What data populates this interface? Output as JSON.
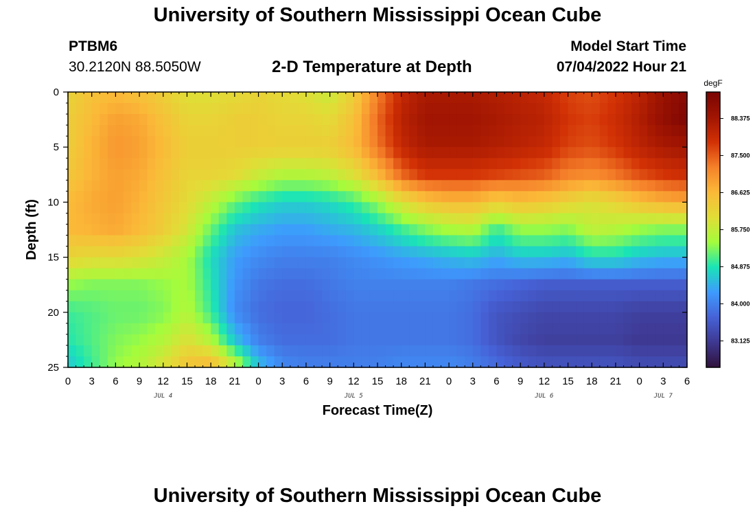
{
  "header": {
    "title": "University of Southern Mississippi Ocean Cube",
    "station_id": "PTBM6",
    "coordinates": "30.2120N  88.5050W",
    "subtitle": "2-D Temperature at Depth",
    "model_start_label": "Model Start Time",
    "model_start_value": "07/04/2022 Hour 21"
  },
  "footer": {
    "title": "University of Southern Mississippi Ocean Cube"
  },
  "chart_data": {
    "type": "heatmap",
    "title": "2-D Temperature at Depth",
    "xlabel": "Forecast Time(Z)",
    "ylabel": "Depth (ft)",
    "x_ticks": [
      "0",
      "3",
      "6",
      "9",
      "12",
      "15",
      "18",
      "21",
      "0",
      "3",
      "6",
      "9",
      "12",
      "15",
      "18",
      "21",
      "0",
      "3",
      "6",
      "9",
      "12",
      "15",
      "18",
      "21",
      "0",
      "3",
      "6"
    ],
    "day_labels": [
      {
        "label": "JUL 4",
        "tick_index": 4
      },
      {
        "label": "JUL 5",
        "tick_index": 12
      },
      {
        "label": "JUL 6",
        "tick_index": 20
      },
      {
        "label": "JUL 7",
        "tick_index": 25
      }
    ],
    "y_ticks": [
      0,
      5,
      10,
      15,
      20,
      25
    ],
    "ylim": [
      0,
      25
    ],
    "y_inverted": true,
    "x_hours_range": [
      0,
      78
    ],
    "colorbar": {
      "unit": "degF",
      "ticks": [
        88.375,
        87.5,
        86.625,
        85.75,
        84.875,
        84.0,
        83.125
      ],
      "tick_labels": [
        "88.375",
        "87.500",
        "86.625",
        "85.750",
        "84.875",
        "84.000",
        "83.125"
      ],
      "range": [
        82.5,
        89.0
      ],
      "colors": [
        "#30123b",
        "#3e3891",
        "#4662d7",
        "#3e9bfe",
        "#1ae4b6",
        "#a4fc3c",
        "#e1dd37",
        "#fbb938",
        "#f5812a",
        "#d23105",
        "#a01502",
        "#7a0403"
      ]
    },
    "x_hours": [
      0,
      3,
      6,
      9,
      12,
      15,
      18,
      21,
      24,
      27,
      30,
      33,
      36,
      39,
      42,
      45,
      48,
      51,
      54,
      57,
      60,
      63,
      66,
      69,
      72,
      75,
      78
    ],
    "depths_ft": [
      0,
      2.5,
      5,
      7.5,
      10,
      12.5,
      15,
      17.5,
      20,
      22.5,
      25
    ],
    "temperature_degF": [
      [
        86.2,
        86.5,
        86.6,
        86.5,
        86.3,
        86.0,
        86.0,
        86.1,
        86.2,
        86.1,
        86.0,
        85.8,
        86.3,
        87.2,
        88.0,
        88.3,
        88.3,
        88.3,
        88.2,
        88.1,
        88.0,
        87.7,
        87.6,
        87.8,
        88.1,
        88.5,
        88.8
      ],
      [
        86.3,
        86.6,
        86.9,
        86.8,
        86.5,
        86.2,
        86.2,
        86.3,
        86.3,
        86.2,
        86.2,
        86.1,
        86.5,
        87.4,
        88.1,
        88.4,
        88.4,
        88.4,
        88.3,
        88.2,
        88.1,
        87.8,
        87.7,
        87.9,
        88.2,
        88.6,
        88.9
      ],
      [
        86.3,
        86.7,
        87.0,
        86.9,
        86.6,
        86.3,
        86.3,
        86.3,
        86.3,
        86.3,
        86.3,
        86.3,
        86.6,
        87.3,
        88.0,
        88.3,
        88.3,
        88.3,
        88.2,
        88.1,
        88.0,
        87.7,
        87.6,
        87.8,
        88.1,
        88.3,
        88.4
      ],
      [
        86.4,
        86.7,
        86.9,
        86.8,
        86.5,
        86.2,
        86.2,
        86.1,
        85.8,
        85.6,
        85.6,
        85.7,
        86.0,
        86.6,
        87.4,
        87.8,
        87.8,
        87.8,
        87.7,
        87.6,
        87.5,
        87.2,
        87.1,
        87.3,
        87.6,
        87.8,
        87.9
      ],
      [
        86.6,
        86.8,
        86.9,
        86.7,
        86.4,
        86.1,
        85.7,
        85.2,
        84.9,
        84.7,
        84.7,
        84.8,
        85.0,
        85.4,
        86.0,
        86.4,
        86.6,
        86.6,
        86.3,
        86.5,
        86.4,
        86.2,
        86.0,
        86.2,
        86.5,
        86.7,
        86.8
      ],
      [
        86.6,
        86.7,
        86.8,
        86.6,
        86.3,
        85.9,
        85.2,
        84.6,
        84.4,
        84.3,
        84.3,
        84.4,
        84.5,
        84.7,
        85.0,
        85.3,
        85.5,
        85.6,
        85.0,
        85.4,
        85.4,
        85.3,
        85.7,
        85.6,
        85.4,
        85.3,
        85.3
      ],
      [
        86.2,
        86.1,
        86.1,
        86.0,
        85.8,
        85.5,
        84.8,
        84.3,
        84.1,
        84.0,
        84.0,
        84.0,
        84.1,
        84.2,
        84.3,
        84.4,
        84.5,
        84.6,
        84.4,
        84.6,
        84.6,
        84.5,
        84.8,
        84.8,
        84.6,
        84.5,
        84.5
      ],
      [
        85.4,
        85.3,
        85.3,
        85.3,
        85.4,
        85.5,
        84.9,
        84.2,
        83.9,
        83.8,
        83.8,
        83.9,
        84.0,
        84.0,
        84.0,
        84.0,
        84.0,
        83.9,
        83.8,
        83.7,
        83.6,
        83.6,
        83.6,
        83.6,
        83.6,
        83.6,
        83.6
      ],
      [
        85.0,
        85.1,
        85.2,
        85.2,
        85.3,
        85.6,
        85.0,
        84.1,
        83.8,
        83.7,
        83.7,
        83.8,
        83.9,
        83.9,
        83.9,
        83.9,
        83.9,
        83.8,
        83.5,
        83.4,
        83.3,
        83.3,
        83.3,
        83.3,
        83.2,
        83.2,
        83.2
      ],
      [
        84.9,
        85.1,
        85.3,
        85.4,
        85.6,
        86.0,
        85.6,
        84.6,
        84.0,
        83.8,
        83.8,
        83.8,
        83.9,
        83.9,
        83.9,
        83.9,
        83.9,
        83.8,
        83.5,
        83.3,
        83.2,
        83.2,
        83.2,
        83.2,
        83.1,
        83.1,
        83.1
      ],
      [
        84.6,
        85.0,
        85.4,
        85.6,
        86.0,
        86.5,
        86.7,
        85.8,
        84.6,
        84.1,
        84.0,
        84.0,
        84.0,
        84.0,
        84.1,
        84.1,
        84.1,
        84.0,
        83.8,
        83.6,
        83.5,
        83.5,
        83.5,
        83.5,
        83.4,
        83.4,
        83.4
      ]
    ]
  }
}
